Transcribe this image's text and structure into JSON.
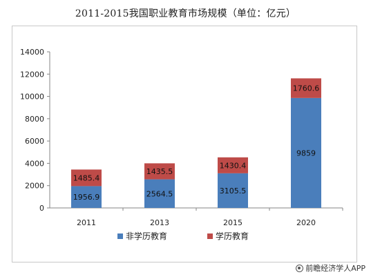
{
  "colors": {
    "non_degree": "#4a7ebb",
    "degree": "#be4b48",
    "axis": "#868686",
    "text": "#222222",
    "grid": "#d9d9d9"
  },
  "footer": {
    "credit": "前瞻经济学人APP"
  },
  "chart_data": {
    "type": "bar",
    "stacked": true,
    "title": "2011-2015我国职业教育市场规模（单位：亿元）",
    "categories": [
      "2011",
      "2013",
      "2015",
      "2020"
    ],
    "series": [
      {
        "name": "非学历教育",
        "values": [
          1956.9,
          2564.5,
          3105.5,
          9859
        ],
        "labels": [
          "1956.9",
          "2564.5",
          "3105.5",
          "9859"
        ]
      },
      {
        "name": "学历教育",
        "values": [
          1485.4,
          1435.5,
          1430.4,
          1760.6
        ],
        "labels": [
          "1485.4",
          "1435.5",
          "1430.4",
          "1760.6"
        ]
      }
    ],
    "ylim": [
      0,
      14000
    ],
    "yticks": [
      "0",
      "2000",
      "4000",
      "6000",
      "8000",
      "10000",
      "12000",
      "14000"
    ],
    "xlabel": "",
    "ylabel": "",
    "grid": false,
    "legend": "bottom"
  }
}
